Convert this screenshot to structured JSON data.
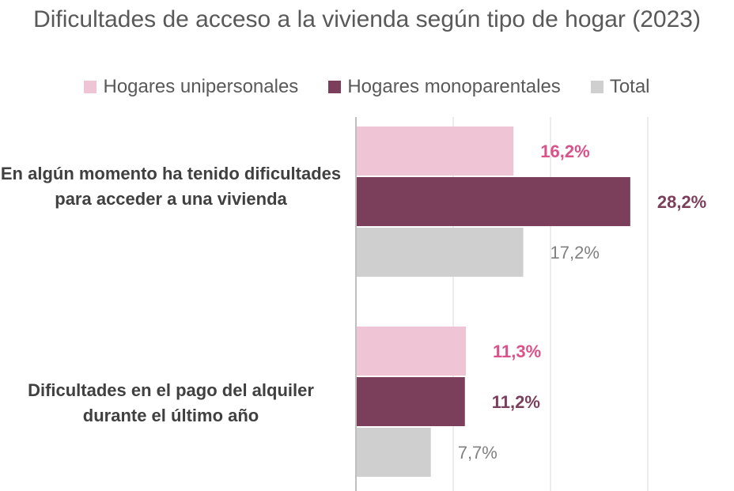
{
  "chart_data": {
    "type": "bar",
    "orientation": "horizontal",
    "title": "Dificultades de acceso a la vivienda según tipo de hogar (2023)",
    "categories": [
      "En algún momento ha tenido dificultades para acceder a una vivienda",
      "Dificultades en el pago del alquiler durante el último año"
    ],
    "series": [
      {
        "name": "Hogares unipersonales",
        "values": [
          16.2,
          11.3
        ],
        "labels": [
          "16,2%",
          "11,3%"
        ],
        "color": "#efc5d6",
        "label_color": "#d9528a"
      },
      {
        "name": "Hogares monoparentales",
        "values": [
          28.2,
          11.2
        ],
        "labels": [
          "28,2%",
          "11,2%"
        ],
        "color": "#7b3f5c",
        "label_color": "#7b3f5c"
      },
      {
        "name": "Total",
        "values": [
          17.2,
          7.7
        ],
        "labels": [
          "17,2%",
          "7,7%"
        ],
        "color": "#cfcfcf",
        "label_color": "#808080"
      }
    ],
    "xlim": [
      0,
      30
    ],
    "grid": true,
    "legend": "top"
  }
}
